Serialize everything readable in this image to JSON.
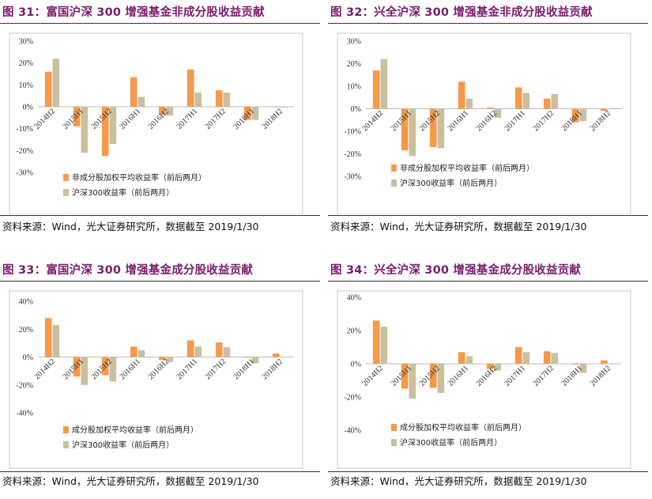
{
  "colors": {
    "series1": "#f59a4a",
    "series2": "#cbbf9f",
    "title": "#7a1d6a"
  },
  "source_text": "资料来源：Wind，光大证券研究所，数据截至 2019/1/30",
  "panels": [
    {
      "title": "图 31：富国沪深 300 增强基金非成分股收益贡献",
      "source": "资料来源：Wind，光大证券研究所，数据截至 2019/1/30"
    },
    {
      "title": "图 32：兴全沪深 300 增强基金非成分股收益贡献",
      "source": "资料来源：Wind，光大证券研究所，数据截至 2019/1/30"
    },
    {
      "title": "图 33：富国沪深 300 增强基金成分股收益贡献",
      "source": "资料来源：Wind，光大证券研究所，数据截至 2019/1/30"
    },
    {
      "title": "图 34：兴全沪深 300 增强基金成分股收益贡献",
      "source": "资料来源：Wind，光大证券研究所，数据截至 2019/1/30"
    }
  ],
  "chart_data": [
    {
      "type": "bar",
      "title": "",
      "categories": [
        "2014H2",
        "2015H1",
        "2015H2",
        "2016H1",
        "2016H2",
        "2017H1",
        "2017H2",
        "2018H1",
        "2018H2"
      ],
      "ylim": [
        -30,
        30
      ],
      "yticks": [
        30,
        20,
        10,
        0,
        -10,
        -20,
        -30
      ],
      "tick_format": "percent",
      "legend_position": "bottom-left",
      "series": [
        {
          "name": "非成分股加权平均收益率（前后两月）",
          "values": [
            16,
            -9,
            -22.5,
            13.5,
            -3.5,
            17,
            7.5,
            -6,
            0
          ]
        },
        {
          "name": "沪深300收益率（前后两月）",
          "values": [
            22,
            -21,
            -17,
            4.5,
            -4,
            6.5,
            6.5,
            -6,
            -0.3
          ]
        }
      ]
    },
    {
      "type": "bar",
      "title": "",
      "categories": [
        "2014H2",
        "2015H1",
        "2015H2",
        "2016H1",
        "2016H2",
        "2017H1",
        "2017H2",
        "2018H1",
        "2018H2"
      ],
      "ylim": [
        -30,
        30
      ],
      "yticks": [
        30,
        20,
        10,
        0,
        -10,
        -20,
        -30
      ],
      "tick_format": "percent",
      "legend_position": "bottom-left",
      "series": [
        {
          "name": "非成分股加权平均收益率（前后两月）",
          "values": [
            17,
            -18.5,
            -17,
            12,
            0.5,
            9.5,
            4.5,
            -6,
            -1
          ]
        },
        {
          "name": "沪深300收益率（前后两月）",
          "values": [
            22,
            -21,
            -17.5,
            4.5,
            -4,
            7,
            6.5,
            -5.5,
            0
          ]
        }
      ]
    },
    {
      "type": "bar",
      "title": "",
      "categories": [
        "2014H2",
        "2015H1",
        "2015H2",
        "2016H1",
        "2016H2",
        "2017H1",
        "2017H2",
        "2018H1",
        "2018H2"
      ],
      "ylim": [
        -40,
        40
      ],
      "yticks": [
        40,
        20,
        0,
        -20,
        -40
      ],
      "tick_format": "percent",
      "legend_position": "bottom-left",
      "series": [
        {
          "name": "成分股加权平均收益率（前后两月）",
          "values": [
            28,
            -14,
            -13,
            7.5,
            -2,
            12,
            10.5,
            -0.5,
            2.5
          ]
        },
        {
          "name": "沪深300收益率（前后两月）",
          "values": [
            23,
            -20,
            -17.5,
            5,
            -3.5,
            7.5,
            7,
            -4.5,
            0
          ]
        }
      ]
    },
    {
      "type": "bar",
      "title": "",
      "categories": [
        "2014H2",
        "2015H1",
        "2015H2",
        "2016H1",
        "2016H2",
        "2017H1",
        "2017H2",
        "2018H1",
        "2018H2"
      ],
      "ylim": [
        -40,
        40
      ],
      "yticks": [
        40,
        20,
        0,
        -20,
        -40
      ],
      "tick_format": "percent",
      "legend_position": "bottom-left",
      "series": [
        {
          "name": "成分股加权平均收益率（前后两月）",
          "values": [
            26,
            -15,
            -14.5,
            7,
            -3,
            10,
            7.5,
            -0.5,
            2
          ]
        },
        {
          "name": "沪深300收益率（前后两月）",
          "values": [
            22.5,
            -21,
            -17.5,
            4.5,
            -4,
            7,
            6.5,
            -5.5,
            0
          ]
        }
      ]
    }
  ]
}
